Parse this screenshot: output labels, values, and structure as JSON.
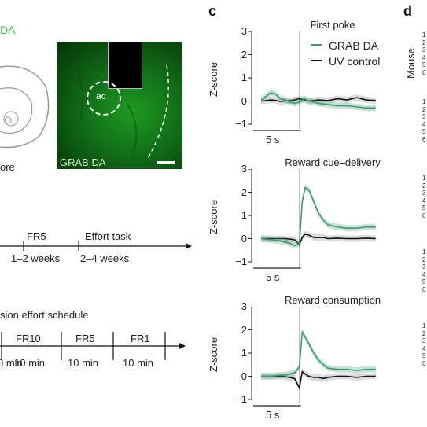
{
  "panels": {
    "a_label_partial": "DA",
    "a_text_partial": "ore",
    "c_letter": "c",
    "d_letter": "d"
  },
  "micrograph": {
    "structure_label": "ac",
    "channel_label": "GRAB DA"
  },
  "timeline": {
    "stages": [
      {
        "name": "FR5",
        "duration": "1–2 weeks"
      },
      {
        "name": "Effort task",
        "duration": "2–4 weeks"
      }
    ]
  },
  "schedule": {
    "title_partial": "sion effort schedule",
    "blocks": [
      {
        "name": "FR10",
        "duration": "10 min"
      },
      {
        "name": "FR5",
        "duration": "10 min"
      },
      {
        "name": "FR1",
        "duration": "10 min"
      }
    ],
    "first_duration_partial": "0 min"
  },
  "legend": [
    {
      "name": "GRAB DA",
      "color": "#3a9a6a"
    },
    {
      "name": "UV control",
      "color": "#111111"
    }
  ],
  "scale_label": "5 s",
  "ylabel": "Z-score",
  "mouse_label": "Mouse",
  "mouse_ids": [
    "1",
    "2",
    "3",
    "4",
    "5",
    "6"
  ],
  "chart_data": [
    {
      "type": "line",
      "title": "First poke",
      "ylabel": "Z-score",
      "ylim": [
        -1,
        3
      ],
      "yticks": [
        "3",
        "2",
        "1",
        "0",
        "−1"
      ],
      "event_time": 0,
      "x": [
        -4,
        -3.5,
        -3,
        -2.5,
        -2,
        -1.5,
        -1,
        -0.5,
        0,
        0.5,
        1,
        2,
        3,
        4,
        5,
        6,
        7,
        8
      ],
      "series": [
        {
          "name": "GRAB DA",
          "values": [
            0.05,
            0.2,
            0.35,
            0.3,
            0.1,
            0.05,
            -0.05,
            -0.1,
            -0.05,
            0.1,
            0.0,
            -0.1,
            -0.15,
            -0.2,
            -0.2,
            -0.25,
            -0.3,
            -0.3
          ]
        },
        {
          "name": "UV control",
          "values": [
            0.0,
            0.02,
            0.05,
            0.03,
            -0.02,
            0.0,
            0.02,
            0.05,
            0.1,
            0.05,
            0.0,
            0.05,
            0.02,
            0.1,
            0.05,
            0.15,
            0.05,
            0.02
          ]
        }
      ]
    },
    {
      "type": "line",
      "title": "Reward cue–delivery",
      "ylabel": "Z-score",
      "ylim": [
        -1,
        3
      ],
      "yticks": [
        "3",
        "2",
        "1",
        "0",
        "−1"
      ],
      "event_time": 0,
      "x": [
        -4,
        -3,
        -2,
        -1.5,
        -1,
        -0.5,
        0,
        0.3,
        0.6,
        1,
        1.5,
        2,
        2.5,
        3,
        4,
        5,
        6,
        7,
        8
      ],
      "series": [
        {
          "name": "GRAB DA",
          "values": [
            0.0,
            -0.05,
            -0.1,
            -0.15,
            -0.2,
            -0.3,
            -0.2,
            1.6,
            2.2,
            2.1,
            1.6,
            1.1,
            0.8,
            0.6,
            0.5,
            0.45,
            0.45,
            0.5,
            0.5
          ]
        },
        {
          "name": "UV control",
          "values": [
            0.0,
            0.0,
            0.0,
            0.0,
            -0.02,
            -0.05,
            -0.25,
            0.05,
            0.2,
            0.15,
            0.05,
            0.05,
            0.05,
            0.0,
            0.02,
            0.0,
            0.0,
            0.02,
            0.0
          ]
        }
      ]
    },
    {
      "type": "line",
      "title": "Reward consumption",
      "ylabel": "Z-score",
      "ylim": [
        -1,
        3
      ],
      "yticks": [
        "3",
        "2",
        "1",
        "0",
        "−1"
      ],
      "event_time": 0,
      "x": [
        -4,
        -3,
        -2,
        -1.5,
        -1,
        -0.5,
        0,
        0.3,
        0.6,
        1,
        1.5,
        2,
        2.5,
        3,
        4,
        5,
        6,
        7,
        8
      ],
      "series": [
        {
          "name": "GRAB DA",
          "values": [
            0.0,
            0.0,
            0.05,
            0.05,
            0.1,
            0.15,
            0.4,
            1.9,
            1.7,
            1.4,
            1.0,
            0.7,
            0.5,
            0.35,
            0.3,
            0.3,
            0.25,
            0.3,
            0.3
          ]
        },
        {
          "name": "UV control",
          "values": [
            0.0,
            0.0,
            0.0,
            -0.02,
            -0.05,
            -0.1,
            -0.5,
            0.2,
            0.1,
            0.0,
            -0.05,
            -0.05,
            -0.1,
            -0.05,
            0.0,
            0.0,
            -0.05,
            0.0,
            0.0
          ]
        }
      ]
    }
  ]
}
